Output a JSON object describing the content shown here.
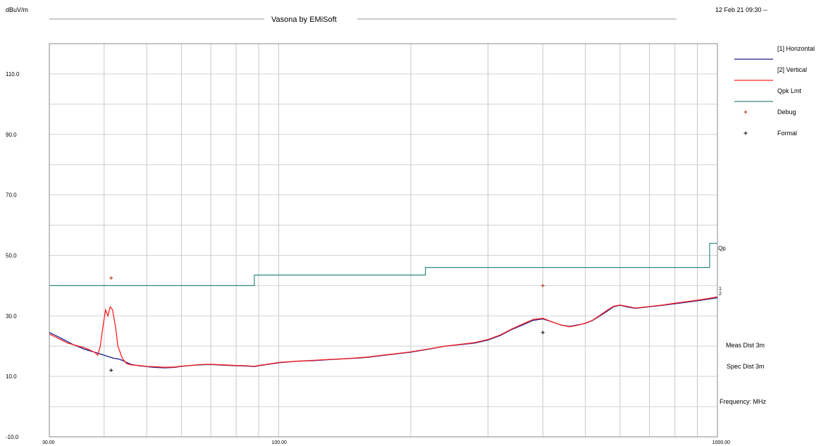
{
  "header": {
    "unit": "dBuV/m",
    "title": "Vasona by EMiSoft",
    "timestamp": "12 Feb 21 09:30 --"
  },
  "notes": {
    "meas_dist": "Meas Dist 3m",
    "spec_dist": "Spec Dist 3m",
    "frequency": "Frequency: MHz"
  },
  "markers": {
    "qp_label": "Qp",
    "trace_tags": [
      "1",
      "2"
    ]
  },
  "legend": [
    {
      "label": "[1] Horizontal",
      "kind": "line",
      "color": "#1c1c8c"
    },
    {
      "label": "[2] Vertical",
      "kind": "line",
      "color": "#ff2020"
    },
    {
      "label": "Qpk Lmt",
      "kind": "line",
      "color": "#2e8b80"
    },
    {
      "label": "Debug",
      "kind": "plus",
      "color": "#b03010"
    },
    {
      "label": "Formal",
      "kind": "plus",
      "color": "#000000"
    }
  ],
  "chart_data": {
    "type": "line",
    "x_scale": "log",
    "xlim": [
      30,
      1000
    ],
    "ylim": [
      -10,
      120
    ],
    "grid": true,
    "legend_position": "right",
    "y_tick_values": [
      -10,
      10,
      30,
      50,
      70,
      90,
      110
    ],
    "y_tick_labels": [
      "-10.0",
      "10.0",
      "30.0",
      "50.0",
      "70.0",
      "90.0",
      "110.0"
    ],
    "x_tick_values": [
      30,
      100,
      1000
    ],
    "x_tick_labels": [
      "30.00",
      "100.00",
      "1000.00"
    ],
    "series": [
      {
        "name": "[1] Horizontal",
        "color": "#1c1c8c",
        "x": [
          30,
          31,
          32,
          33,
          34,
          35,
          36,
          37,
          38,
          39,
          40,
          41,
          42,
          43,
          44,
          45,
          46,
          48,
          50,
          52,
          55,
          58,
          60,
          63,
          66,
          70,
          75,
          80,
          85,
          88,
          90,
          95,
          100,
          110,
          120,
          130,
          140,
          150,
          160,
          170,
          180,
          190,
          200,
          220,
          240,
          260,
          280,
          300,
          320,
          340,
          360,
          380,
          400,
          420,
          440,
          460,
          480,
          500,
          520,
          540,
          560,
          580,
          600,
          620,
          650,
          700,
          750,
          800,
          850,
          900,
          950,
          1000
        ],
        "y": [
          24.5,
          23.5,
          22.5,
          21.5,
          20.5,
          19.8,
          19.0,
          18.5,
          18.0,
          17.5,
          17.0,
          16.5,
          16.0,
          15.8,
          15.3,
          14.6,
          14.0,
          13.5,
          13.2,
          13.0,
          12.8,
          13.0,
          13.3,
          13.6,
          13.8,
          13.9,
          13.7,
          13.5,
          13.4,
          13.2,
          13.5,
          14.0,
          14.5,
          15.0,
          15.2,
          15.5,
          15.8,
          16.0,
          16.3,
          16.8,
          17.2,
          17.6,
          18.0,
          19.0,
          20.0,
          20.5,
          21.0,
          22.0,
          23.5,
          25.5,
          27.0,
          28.5,
          29.0,
          28.0,
          27.0,
          26.5,
          27.0,
          27.5,
          28.5,
          30.0,
          31.5,
          33.0,
          33.5,
          33.0,
          32.5,
          33.0,
          33.5,
          34.0,
          34.5,
          35.0,
          35.5,
          36.0
        ]
      },
      {
        "name": "[2] Vertical",
        "color": "#ff2020",
        "x": [
          30,
          31,
          32,
          33,
          34,
          35,
          36,
          37,
          38,
          38.7,
          39.2,
          39.8,
          40.3,
          40.8,
          41.3,
          41.8,
          42.5,
          43,
          44,
          45,
          46,
          48,
          50,
          52,
          55,
          58,
          60,
          63,
          66,
          70,
          75,
          80,
          85,
          88,
          90,
          95,
          100,
          110,
          120,
          130,
          140,
          150,
          160,
          170,
          180,
          190,
          200,
          220,
          240,
          260,
          280,
          300,
          320,
          340,
          360,
          380,
          400,
          420,
          440,
          460,
          480,
          500,
          520,
          540,
          560,
          580,
          600,
          620,
          650,
          700,
          750,
          800,
          850,
          900,
          950,
          1000
        ],
        "y": [
          24.0,
          23.0,
          22.0,
          21.0,
          20.5,
          20.0,
          19.5,
          18.8,
          18.0,
          17.0,
          20.0,
          27.0,
          32.0,
          30.0,
          33.0,
          32.0,
          26.0,
          20.0,
          16.0,
          14.2,
          13.8,
          13.6,
          13.3,
          13.2,
          13.0,
          13.1,
          13.4,
          13.6,
          13.9,
          14.0,
          13.8,
          13.6,
          13.5,
          13.3,
          13.6,
          14.1,
          14.6,
          15.0,
          15.3,
          15.6,
          15.8,
          16.1,
          16.4,
          16.9,
          17.3,
          17.7,
          18.1,
          19.1,
          20.0,
          20.6,
          21.2,
          22.2,
          23.7,
          25.7,
          27.3,
          28.8,
          29.2,
          28.0,
          27.0,
          26.4,
          26.9,
          27.6,
          28.6,
          30.2,
          31.8,
          33.2,
          33.6,
          33.2,
          32.6,
          33.1,
          33.6,
          34.2,
          34.7,
          35.2,
          35.7,
          36.3
        ]
      },
      {
        "name": "Qpk Lmt",
        "color": "#2e8b80",
        "x": [
          30,
          88,
          88,
          216,
          216,
          960,
          960,
          1000
        ],
        "y": [
          40,
          40,
          43.5,
          43.5,
          46,
          46,
          54,
          54
        ]
      }
    ],
    "points": [
      {
        "name": "Debug",
        "color": "#b03010",
        "x": 41.5,
        "y": 42.5
      },
      {
        "name": "Formal",
        "color": "#000000",
        "x": 41.5,
        "y": 12.0
      },
      {
        "name": "Debug",
        "color": "#b03010",
        "x": 400,
        "y": 40.0
      },
      {
        "name": "Formal",
        "color": "#000000",
        "x": 400,
        "y": 24.5
      }
    ]
  }
}
